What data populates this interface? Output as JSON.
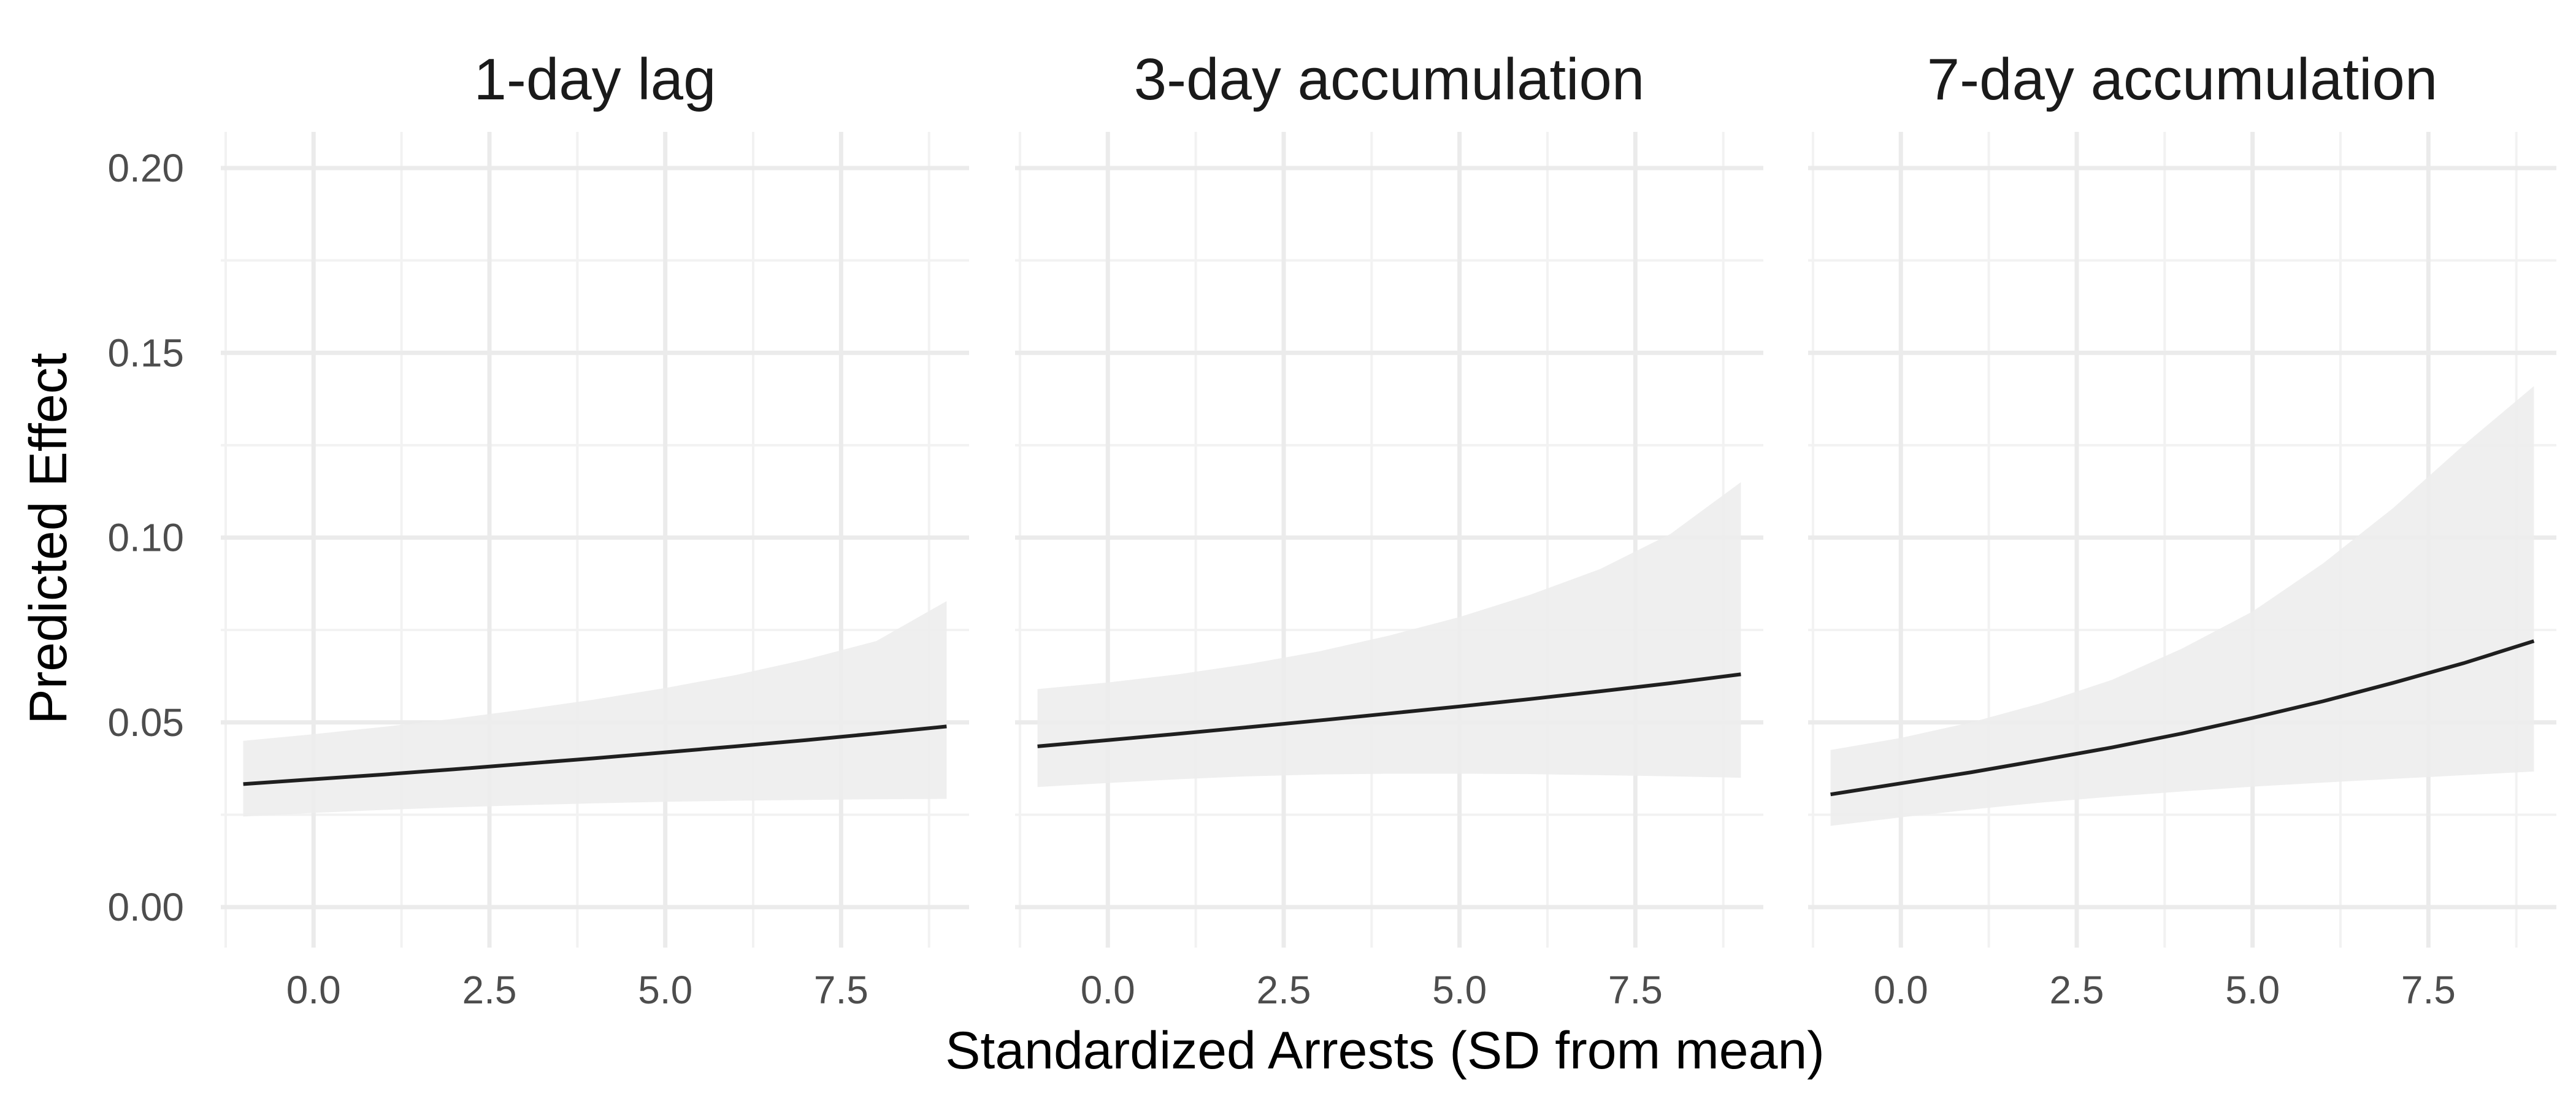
{
  "chart_data": {
    "type": "line",
    "xlabel": "Standardized Arrests (SD from mean)",
    "ylabel": "Predicted Effect",
    "xlim": [
      -1.0,
      9.0
    ],
    "ylim": [
      0.0,
      0.2
    ],
    "x_ticks": [
      "0.0",
      "2.5",
      "5.0",
      "7.5"
    ],
    "y_ticks": [
      "0.00",
      "0.05",
      "0.10",
      "0.15",
      "0.20"
    ],
    "grid": true,
    "facets": [
      {
        "title": "1-day lag",
        "x": [
          -1,
          0,
          1,
          2,
          3,
          4,
          5,
          6,
          7,
          8,
          9
        ],
        "fit": [
          0.0333,
          0.0346,
          0.0359,
          0.0373,
          0.0388,
          0.0403,
          0.0419,
          0.0435,
          0.0452,
          0.047,
          0.0489
        ],
        "lower": [
          0.0245,
          0.0255,
          0.0263,
          0.027,
          0.0276,
          0.0281,
          0.0285,
          0.0288,
          0.029,
          0.0292,
          0.0293
        ],
        "upper": [
          0.045,
          0.0468,
          0.0488,
          0.051,
          0.0535,
          0.0562,
          0.0593,
          0.0628,
          0.067,
          0.072,
          0.0828
        ]
      },
      {
        "title": "3-day accumulation",
        "x": [
          -1,
          0,
          1,
          2,
          3,
          4,
          5,
          6,
          7,
          8,
          9
        ],
        "fit": [
          0.0435,
          0.0452,
          0.0469,
          0.0487,
          0.0505,
          0.0524,
          0.0543,
          0.0563,
          0.0584,
          0.0606,
          0.063
        ],
        "lower": [
          0.0325,
          0.0336,
          0.0346,
          0.0354,
          0.0359,
          0.0361,
          0.0361,
          0.036,
          0.0357,
          0.0354,
          0.035
        ],
        "upper": [
          0.059,
          0.0608,
          0.063,
          0.0658,
          0.0692,
          0.0735,
          0.0785,
          0.0845,
          0.0915,
          0.101,
          0.115
        ]
      },
      {
        "title": "7-day accumulation",
        "x": [
          -1,
          0,
          1,
          2,
          3,
          4,
          5,
          6,
          7,
          8,
          9
        ],
        "fit": [
          0.0305,
          0.0335,
          0.0365,
          0.0398,
          0.0432,
          0.047,
          0.0512,
          0.0557,
          0.0607,
          0.066,
          0.072
        ],
        "lower": [
          0.022,
          0.0243,
          0.0264,
          0.0283,
          0.0299,
          0.0313,
          0.0326,
          0.0337,
          0.0347,
          0.0357,
          0.0367
        ],
        "upper": [
          0.0425,
          0.0458,
          0.05,
          0.0552,
          0.0615,
          0.07,
          0.08,
          0.093,
          0.108,
          0.125,
          0.141
        ]
      }
    ]
  }
}
